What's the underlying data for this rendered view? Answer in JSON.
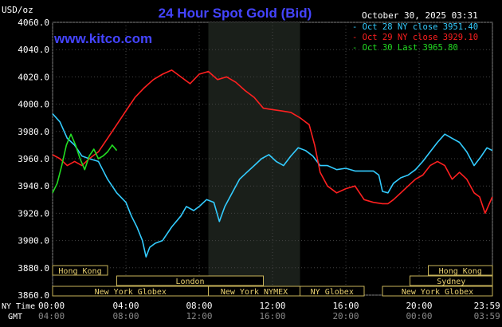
{
  "header": {
    "unit": "USD/oz",
    "title": "24 Hour Spot Gold (Bid)",
    "timestamp": "October 30, 2025 03:31",
    "site": "www.kitco.com"
  },
  "legend": [
    {
      "label": "Oct 28 NY close 3951.40",
      "color": "#33ccff"
    },
    {
      "label": "Oct 29 NY close 3929.10",
      "color": "#ff2020"
    },
    {
      "label": "Oct 30 Last 3965.80",
      "color": "#22dd22"
    }
  ],
  "axis_titles": {
    "ny_time": "NY Time",
    "gmt": "GMT"
  },
  "sessions": [
    {
      "label": "Hong Kong",
      "start": 0,
      "end": 3.0,
      "row": 0
    },
    {
      "label": "London",
      "start": 3.5,
      "end": 11.5,
      "row": 1
    },
    {
      "label": "New York Globex",
      "start": 0,
      "end": 8.5,
      "row": 2
    },
    {
      "label": "New York NYMEX",
      "start": 8.5,
      "end": 13.5,
      "row": 2
    },
    {
      "label": "NY Globex",
      "start": 13.5,
      "end": 17.0,
      "row": 2
    },
    {
      "label": "Hong Kong",
      "start": 20.5,
      "end": 24.0,
      "row": 0
    },
    {
      "label": "Sydney",
      "start": 19.5,
      "end": 24.0,
      "row": 1
    },
    {
      "label": "New York Globex",
      "start": 18.0,
      "end": 24.0,
      "row": 2
    }
  ],
  "chart_data": {
    "type": "line",
    "ylim": [
      3860,
      4060
    ],
    "xlim": [
      0,
      24
    ],
    "yticks": [
      "3860.0",
      "3880.0",
      "3900.0",
      "3920.0",
      "3940.0",
      "3960.0",
      "3980.0",
      "4000.0",
      "4020.0",
      "4040.0",
      "4060.0"
    ],
    "xticks_ny": [
      "00:00",
      "04:00",
      "08:00",
      "12:00",
      "16:00",
      "20:00",
      "23:59"
    ],
    "xticks_gmt": [
      "04:00",
      "08:00",
      "12:00",
      "16:00",
      "20:00",
      "00:00",
      "03:59"
    ],
    "shaded_region": [
      8.5,
      13.5
    ],
    "series": [
      {
        "name": "Oct 28",
        "color": "#33ccff",
        "x": [
          0,
          0.4,
          0.8,
          1.2,
          1.6,
          2.0,
          2.5,
          3.0,
          3.5,
          4.0,
          4.3,
          4.6,
          4.9,
          5.1,
          5.3,
          5.6,
          6.0,
          6.5,
          7.0,
          7.3,
          7.7,
          8.0,
          8.4,
          8.8,
          9.1,
          9.4,
          9.8,
          10.2,
          10.6,
          11.0,
          11.4,
          11.8,
          12.2,
          12.6,
          13.0,
          13.4,
          13.8,
          14.2,
          14.6,
          15.0,
          15.5,
          16.0,
          16.5,
          17.0,
          17.5,
          17.8,
          18.0,
          18.3,
          18.6,
          19.0,
          19.4,
          19.8,
          20.2,
          20.6,
          21.0,
          21.4,
          21.8,
          22.2,
          22.6,
          23.0,
          23.4,
          23.7,
          23.99
        ],
        "y": [
          3993,
          3987,
          3975,
          3970,
          3962,
          3960,
          3958,
          3945,
          3935,
          3928,
          3918,
          3910,
          3900,
          3888,
          3895,
          3898,
          3900,
          3910,
          3918,
          3925,
          3922,
          3925,
          3930,
          3928,
          3914,
          3925,
          3935,
          3945,
          3950,
          3955,
          3960,
          3963,
          3958,
          3955,
          3962,
          3968,
          3966,
          3962,
          3955,
          3955,
          3952,
          3953,
          3951,
          3951,
          3951,
          3948,
          3936,
          3935,
          3942,
          3946,
          3948,
          3952,
          3958,
          3965,
          3972,
          3978,
          3975,
          3972,
          3965,
          3955,
          3962,
          3968,
          3966
        ]
      },
      {
        "name": "Oct 29",
        "color": "#ff2020",
        "x": [
          0,
          0.4,
          0.8,
          1.2,
          1.6,
          2.0,
          2.5,
          3.0,
          3.5,
          4.0,
          4.5,
          5.0,
          5.5,
          6.0,
          6.5,
          7.0,
          7.5,
          8.0,
          8.5,
          9.0,
          9.5,
          10.0,
          10.5,
          11.0,
          11.5,
          12.0,
          12.5,
          13.0,
          13.5,
          14.0,
          14.3,
          14.6,
          15.0,
          15.5,
          16.0,
          16.5,
          17.0,
          17.5,
          18.0,
          18.3,
          18.6,
          19.0,
          19.4,
          19.8,
          20.2,
          20.6,
          21.0,
          21.4,
          21.8,
          22.2,
          22.6,
          23.0,
          23.3,
          23.6,
          23.99
        ],
        "y": [
          3963,
          3960,
          3955,
          3958,
          3955,
          3960,
          3965,
          3975,
          3985,
          3995,
          4005,
          4012,
          4018,
          4022,
          4025,
          4020,
          4015,
          4022,
          4024,
          4018,
          4020,
          4016,
          4010,
          4005,
          3997,
          3996,
          3995,
          3994,
          3990,
          3985,
          3970,
          3950,
          3940,
          3935,
          3938,
          3940,
          3930,
          3928,
          3927,
          3927,
          3930,
          3935,
          3940,
          3945,
          3948,
          3955,
          3958,
          3955,
          3945,
          3950,
          3945,
          3935,
          3932,
          3920,
          3932
        ]
      },
      {
        "name": "Oct 30",
        "color": "#22dd22",
        "x": [
          0,
          0.25,
          0.5,
          0.75,
          1.0,
          1.25,
          1.5,
          1.75,
          2.0,
          2.25,
          2.5,
          2.75,
          3.0,
          3.25,
          3.5
        ],
        "y": [
          3935,
          3942,
          3955,
          3970,
          3978,
          3970,
          3960,
          3952,
          3962,
          3967,
          3960,
          3962,
          3965,
          3970,
          3966
        ]
      }
    ]
  }
}
